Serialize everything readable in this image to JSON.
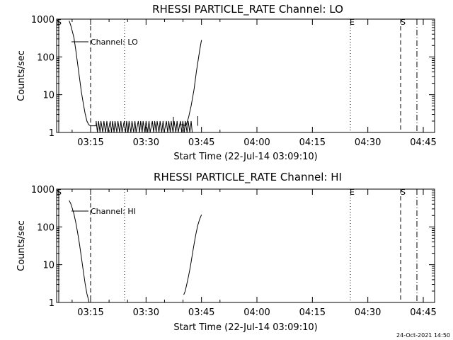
{
  "footer": {
    "timestamp": "24-Oct-2021 14:50"
  },
  "chart_data": [
    {
      "type": "line",
      "title": "RHESSI PARTICLE_RATE Channel: LO",
      "xlabel": "Start Time (22-Jul-14 03:09:10)",
      "ylabel": "Counts/sec",
      "yscale": "log",
      "ylim": [
        1,
        1000
      ],
      "xlim_minutes_after_03_00": [
        9.2,
        50.5
      ],
      "x_ticks": [
        "03:15",
        "03:30",
        "03:45",
        "04:00",
        "04:15",
        "04:30",
        "04:45"
      ],
      "y_ticks": [
        "1",
        "10",
        "100",
        "1000"
      ],
      "legend": "Channel: LO",
      "vertical_markers": [
        {
          "label": "S",
          "time_min": 9.6,
          "style": "solid"
        },
        {
          "label": "",
          "time_min": 17.9,
          "style": "dashed"
        },
        {
          "label": "",
          "time_min": 27.7,
          "style": "dotted"
        },
        {
          "label": "E",
          "time_min": 27.2,
          "style": "dotted",
          "position": "second"
        },
        {
          "label": "S",
          "time_min": 41.0,
          "style": "dashed"
        },
        {
          "label": "",
          "time_min": 45.5,
          "style": "dashdot"
        }
      ],
      "series": [
        {
          "time_min": [
            9.2,
            9.6,
            10.0,
            10.5,
            11.0,
            11.5,
            12.0,
            12.5,
            13.0,
            13.5,
            14.0,
            14.5,
            15.0,
            15.5,
            15.8,
            16.5
          ],
          "counts": [
            900,
            700,
            500,
            320,
            150,
            65,
            28,
            12,
            6,
            3.2,
            2.0,
            1.6,
            1.5,
            1.5,
            1.5,
            1.5
          ],
          "note_segment": "initial decay"
        },
        {
          "time_min": [
            16.5,
            42.7
          ],
          "counts": [
            1.5,
            2.0
          ],
          "note_segment": "noise floor oscillating 1 to 2"
        },
        {
          "time_min": [
            39.0,
            40.0,
            40.8,
            41.5,
            42.2,
            43.0,
            43.6,
            44.2,
            44.6,
            45.0
          ],
          "counts": [
            1.6,
            1.6,
            1.5,
            2.5,
            5,
            14,
            40,
            95,
            170,
            280
          ],
          "note_segment": "rise"
        }
      ]
    },
    {
      "type": "line",
      "title": "RHESSI PARTICLE_RATE Channel: HI",
      "xlabel": "Start Time (22-Jul-14 03:09:10)",
      "ylabel": "Counts/sec",
      "yscale": "log",
      "ylim": [
        1,
        1000
      ],
      "x_ticks": [
        "03:15",
        "03:30",
        "03:45",
        "04:00",
        "04:15",
        "04:30",
        "04:45"
      ],
      "y_ticks": [
        "1",
        "10",
        "100",
        "1000"
      ],
      "legend": "Channel: HI",
      "series": [
        {
          "time_min": [
            9.2,
            9.6,
            10.0,
            10.5,
            11.0,
            11.5,
            12.0,
            12.5,
            13.0,
            13.5,
            14.0,
            14.4,
            14.6
          ],
          "counts": [
            500,
            420,
            320,
            220,
            130,
            70,
            35,
            16,
            7,
            3.2,
            1.7,
            1.2,
            1.0
          ],
          "note_segment": "initial decay"
        },
        {
          "time_min": [
            40.2,
            40.6,
            41.0,
            41.5,
            42.0,
            42.5,
            43.0,
            43.5,
            44.0,
            44.5,
            45.0
          ],
          "counts": [
            1.6,
            2.0,
            3.0,
            5,
            9,
            18,
            35,
            65,
            110,
            160,
            210
          ],
          "note_segment": "rise"
        }
      ]
    }
  ],
  "labels": {
    "top_title": "RHESSI PARTICLE_RATE Channel: LO",
    "top_legend": "Channel: LO",
    "bottom_title": "RHESSI PARTICLE_RATE Channel: HI",
    "bottom_legend": "Channel: HI",
    "xlabel": "Start Time (22-Jul-14 03:09:10)",
    "ylabel": "Counts/sec",
    "marker_S": "S",
    "marker_E": "E"
  }
}
